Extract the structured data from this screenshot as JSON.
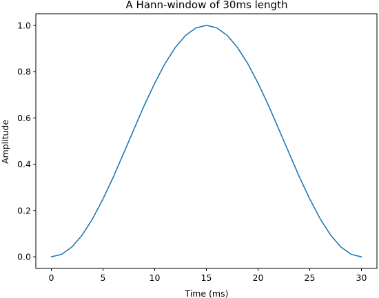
{
  "chart_data": {
    "type": "line",
    "title": "A Hann-window of 30ms length",
    "xlabel": "Time (ms)",
    "ylabel": "Amplitude",
    "xlim": [
      -1.5,
      31.5
    ],
    "ylim": [
      -0.05,
      1.05
    ],
    "x_ticks": [
      0,
      5,
      10,
      15,
      20,
      25,
      30
    ],
    "x_tick_labels": [
      "0",
      "5",
      "10",
      "15",
      "20",
      "25",
      "30"
    ],
    "y_ticks": [
      0.0,
      0.2,
      0.4,
      0.6,
      0.8,
      1.0
    ],
    "y_tick_labels": [
      "0.0",
      "0.2",
      "0.4",
      "0.6",
      "0.8",
      "1.0"
    ],
    "grid": false,
    "series": [
      {
        "color": "#1f77b4",
        "x": [
          0,
          1,
          2,
          3,
          4,
          5,
          6,
          7,
          8,
          9,
          10,
          11,
          12,
          13,
          14,
          15,
          16,
          17,
          18,
          19,
          20,
          21,
          22,
          23,
          24,
          25,
          26,
          27,
          28,
          29,
          30
        ],
        "y": [
          0.0,
          0.011,
          0.043,
          0.095,
          0.165,
          0.25,
          0.345,
          0.448,
          0.552,
          0.655,
          0.75,
          0.835,
          0.905,
          0.957,
          0.989,
          1.0,
          0.989,
          0.957,
          0.905,
          0.835,
          0.75,
          0.655,
          0.552,
          0.448,
          0.345,
          0.25,
          0.165,
          0.095,
          0.043,
          0.011,
          0.0
        ]
      }
    ]
  }
}
